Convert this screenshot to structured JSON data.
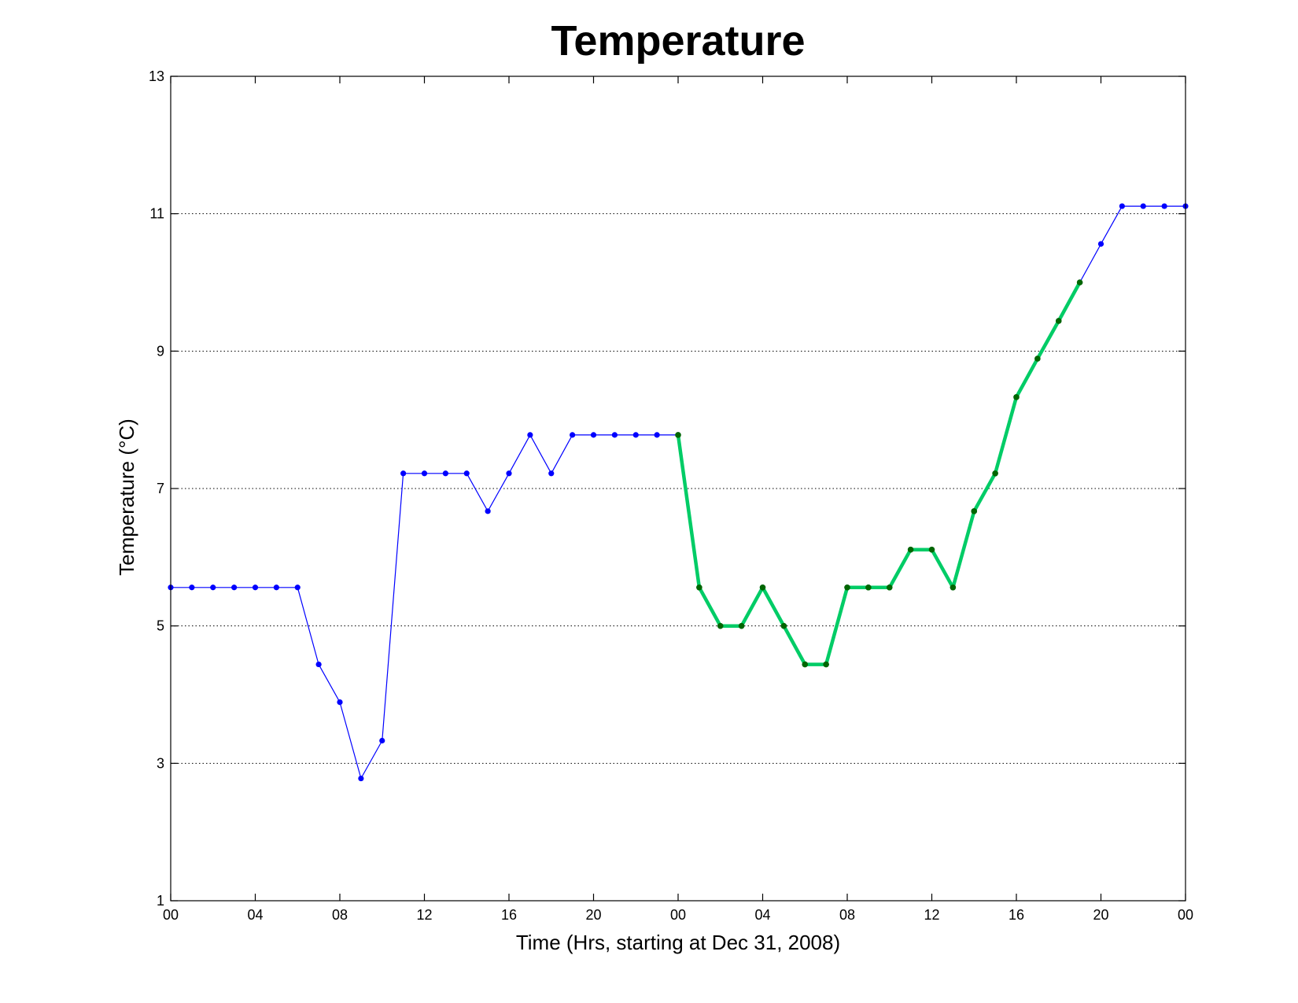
{
  "chart_data": {
    "type": "line",
    "title": "Temperature",
    "xlabel": "Time (Hrs, starting at Dec 31, 2008)",
    "ylabel": "Temperature (°C)",
    "x_ticks": [
      "00",
      "04",
      "08",
      "12",
      "16",
      "20",
      "00",
      "04",
      "08",
      "12",
      "16",
      "20",
      "00"
    ],
    "x_tick_hours": [
      0,
      4,
      8,
      12,
      16,
      20,
      24,
      28,
      32,
      36,
      40,
      44,
      48
    ],
    "xlim": [
      0,
      48
    ],
    "ylim": [
      1,
      13
    ],
    "y_ticks": [
      1,
      3,
      5,
      7,
      9,
      11,
      13
    ],
    "grid": "horizontal dotted at y ticks",
    "x_unit": "hours since Dec 31, 2008 00:00",
    "series": [
      {
        "color": "#0000ff",
        "line_style": "thin",
        "marker": "dot",
        "x": [
          0,
          1,
          2,
          3,
          4,
          5,
          6,
          7,
          8,
          9,
          10,
          11,
          12,
          13,
          14,
          15,
          16,
          17,
          18,
          19,
          20,
          21,
          22,
          23,
          24,
          25,
          26,
          27,
          28,
          29,
          30,
          31,
          32,
          33,
          34,
          35,
          36,
          37,
          38,
          39,
          40,
          41,
          42,
          43,
          44,
          45,
          46,
          47,
          48
        ],
        "values": [
          5.56,
          5.56,
          5.56,
          5.56,
          5.56,
          5.56,
          5.56,
          4.44,
          3.89,
          2.78,
          3.33,
          7.22,
          7.22,
          7.22,
          7.22,
          6.67,
          7.22,
          7.78,
          7.22,
          7.78,
          7.78,
          7.78,
          7.78,
          7.78,
          7.78,
          5.56,
          5.0,
          5.0,
          5.56,
          5.0,
          4.44,
          4.44,
          5.56,
          5.56,
          5.56,
          6.11,
          6.11,
          5.56,
          6.67,
          7.22,
          8.33,
          8.89,
          9.44,
          10.0,
          10.56,
          11.11,
          11.11,
          11.11,
          11.11
        ]
      },
      {
        "color": "#00cc66",
        "marker_color": "#006600",
        "line_style": "thick",
        "marker": "dot",
        "x": [
          24,
          25,
          26,
          27,
          28,
          29,
          30,
          31,
          32,
          33,
          34,
          35,
          36,
          37,
          38,
          39,
          40,
          41,
          42,
          43
        ],
        "values": [
          7.78,
          5.56,
          5.0,
          5.0,
          5.56,
          5.0,
          4.44,
          4.44,
          5.56,
          5.56,
          5.56,
          6.11,
          6.11,
          5.56,
          6.67,
          7.22,
          8.33,
          8.89,
          9.44,
          10.0
        ]
      }
    ]
  }
}
